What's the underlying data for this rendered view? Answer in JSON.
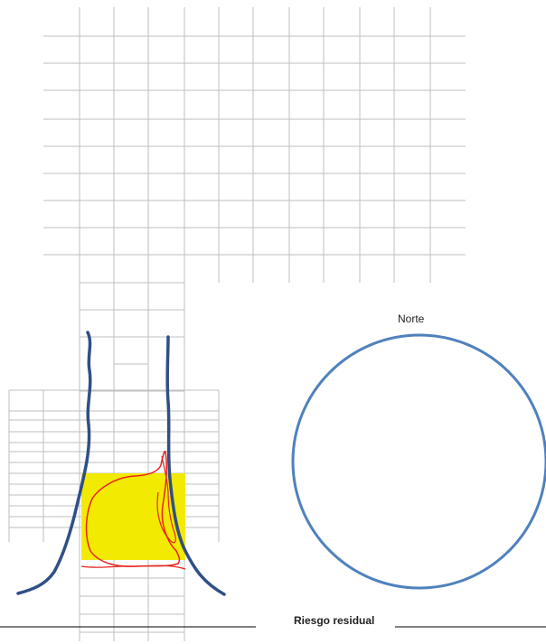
{
  "compass": {
    "north_label": "Norte"
  },
  "footer": {
    "residual_risk_label": "Riesgo residual"
  },
  "colors": {
    "grid": "#bfbfbf",
    "river": "#2f4f86",
    "circle": "#4f81bd",
    "highlight": "#f2ea00",
    "marker": "#e8231f",
    "line": "#000000"
  }
}
